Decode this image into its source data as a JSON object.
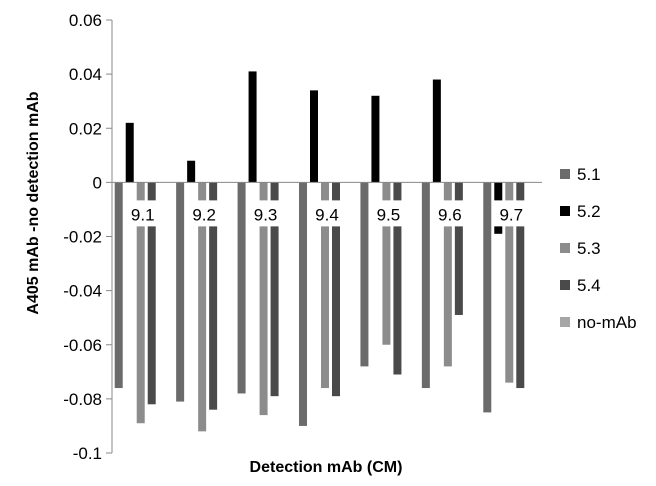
{
  "chart_data": {
    "type": "bar",
    "categories": [
      "9.1",
      "9.2",
      "9.3",
      "9.4",
      "9.5",
      "9.6",
      "9.7"
    ],
    "series": [
      {
        "name": "5.1",
        "values": [
          -0.076,
          -0.081,
          -0.078,
          -0.09,
          -0.068,
          -0.076,
          -0.085
        ],
        "color": "#6b6b6b"
      },
      {
        "name": "5.2",
        "values": [
          0.022,
          0.008,
          0.041,
          0.034,
          0.032,
          0.038,
          -0.019
        ],
        "color": "#000000"
      },
      {
        "name": "5.3",
        "values": [
          -0.089,
          -0.092,
          -0.086,
          -0.076,
          -0.06,
          -0.068,
          -0.074
        ],
        "color": "#8c8c8c"
      },
      {
        "name": "5.4",
        "values": [
          -0.082,
          -0.084,
          -0.079,
          -0.079,
          -0.071,
          -0.049,
          -0.076
        ],
        "color": "#4a4a4a"
      },
      {
        "name": "no-mAb",
        "values": [
          0,
          0,
          0,
          0,
          0,
          0,
          0
        ],
        "color": "#a6a6a6"
      }
    ],
    "y_ticks": [
      "0.06",
      "0.04",
      "0.02",
      "0",
      "-0.02",
      "-0.04",
      "-0.06",
      "-0.08",
      "-0.1"
    ],
    "ylim": [
      -0.1,
      0.06
    ],
    "xlabel": "Detection mAb (CM)",
    "ylabel": "A405 mAb -no detection mAb",
    "legend_position": "right",
    "grid": false
  }
}
